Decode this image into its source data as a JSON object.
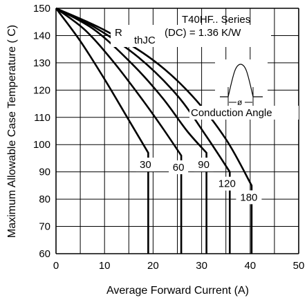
{
  "chart_data": {
    "type": "line",
    "title": "",
    "xlabel": "Average Forward Current (A)",
    "ylabel": "Maximum Allowable Case Temperature ( C)",
    "xlim": [
      0,
      50
    ],
    "ylim": [
      60,
      150
    ],
    "xticks": [
      "0",
      "10",
      "20",
      "30",
      "40",
      "50"
    ],
    "yticks": [
      "60",
      "70",
      "80",
      "90",
      "100",
      "110",
      "120",
      "130",
      "140",
      "150"
    ],
    "grid": true,
    "annotations": {
      "series_title": "T40HF.. Series",
      "rth_prefix": "R",
      "rth_sub": "thJC",
      "rth_suffix": "(DC) = 1.36 K/W",
      "inset_symbol": "ø",
      "inset_label": "Conduction Angle"
    },
    "series": [
      {
        "name": "30",
        "points": [
          [
            0,
            150
          ],
          [
            5,
            138
          ],
          [
            10,
            124
          ],
          [
            15,
            109
          ],
          [
            19,
            97
          ],
          [
            19,
            60
          ]
        ]
      },
      {
        "name": "60",
        "points": [
          [
            0,
            150
          ],
          [
            6,
            142
          ],
          [
            12,
            130
          ],
          [
            18,
            116
          ],
          [
            22,
            106
          ],
          [
            25.8,
            96
          ],
          [
            25.8,
            60
          ]
        ]
      },
      {
        "name": "90",
        "points": [
          [
            0,
            150
          ],
          [
            8,
            142
          ],
          [
            16,
            129
          ],
          [
            22,
            117
          ],
          [
            27,
            105
          ],
          [
            31,
            97
          ],
          [
            31,
            60
          ]
        ]
      },
      {
        "name": "120",
        "points": [
          [
            0,
            150
          ],
          [
            8,
            143
          ],
          [
            17,
            132
          ],
          [
            25,
            118
          ],
          [
            31,
            103
          ],
          [
            35.8,
            90
          ],
          [
            35.8,
            60
          ]
        ]
      },
      {
        "name": "180",
        "points": [
          [
            0,
            150
          ],
          [
            10,
            142
          ],
          [
            20,
            131
          ],
          [
            28,
            118
          ],
          [
            35,
            102
          ],
          [
            40.3,
            85
          ],
          [
            40.3,
            60
          ]
        ]
      }
    ]
  }
}
